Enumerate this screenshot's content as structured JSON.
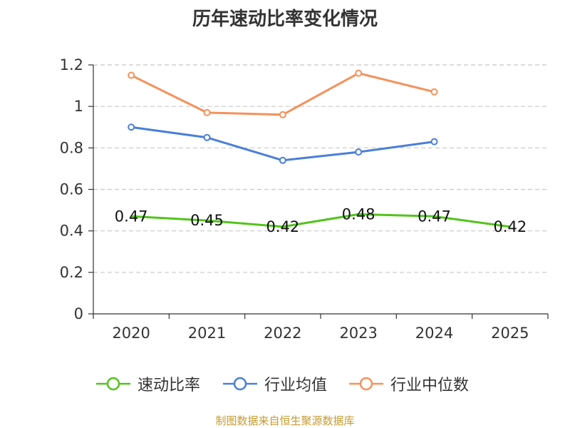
{
  "title": "历年速动比率变化情况",
  "source": "制图数据来自恒生聚源数据库",
  "chart_data": {
    "type": "line",
    "title": "历年速动比率变化情况",
    "categories": [
      "2020",
      "2021",
      "2022",
      "2023",
      "2024",
      "2025"
    ],
    "ylim": [
      0,
      1.2
    ],
    "yticks": [
      0,
      0.2,
      0.4,
      0.6,
      0.8,
      1,
      1.2
    ],
    "ytick_labels": [
      "0",
      "0.2",
      "0.4",
      "0.6",
      "0.8",
      "1",
      "1.2"
    ],
    "grid": true,
    "legend_position": "bottom",
    "series": [
      {
        "name": "速动比率",
        "color": "#52c41a",
        "markers": false,
        "show_labels": true,
        "values": [
          0.47,
          0.45,
          0.42,
          0.48,
          0.47,
          0.42
        ],
        "labels": [
          "0.47",
          "0.45",
          "0.42",
          "0.48",
          "0.47",
          "0.42"
        ]
      },
      {
        "name": "行业均值",
        "color": "#4a7fd8",
        "markers": true,
        "show_labels": false,
        "values": [
          0.9,
          0.85,
          0.74,
          0.78,
          0.83,
          null
        ]
      },
      {
        "name": "行业中位数",
        "color": "#f5915a",
        "markers": true,
        "show_labels": false,
        "values": [
          1.15,
          0.97,
          0.96,
          1.16,
          1.07,
          null
        ]
      }
    ]
  }
}
